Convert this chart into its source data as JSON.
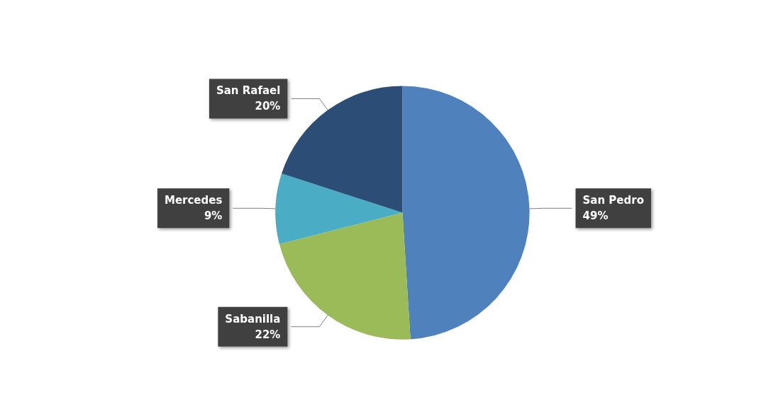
{
  "chart_data": {
    "type": "pie",
    "categories": [
      "San Pedro",
      "Sabanilla",
      "Mercedes",
      "San Rafael"
    ],
    "values": [
      49,
      22,
      9,
      20
    ],
    "value_labels": [
      "49%",
      "22%",
      "9%",
      "20%"
    ],
    "colors": [
      "#4f81bd",
      "#9bbb59",
      "#4bacc6",
      "#2c4d75"
    ],
    "legend": false
  }
}
